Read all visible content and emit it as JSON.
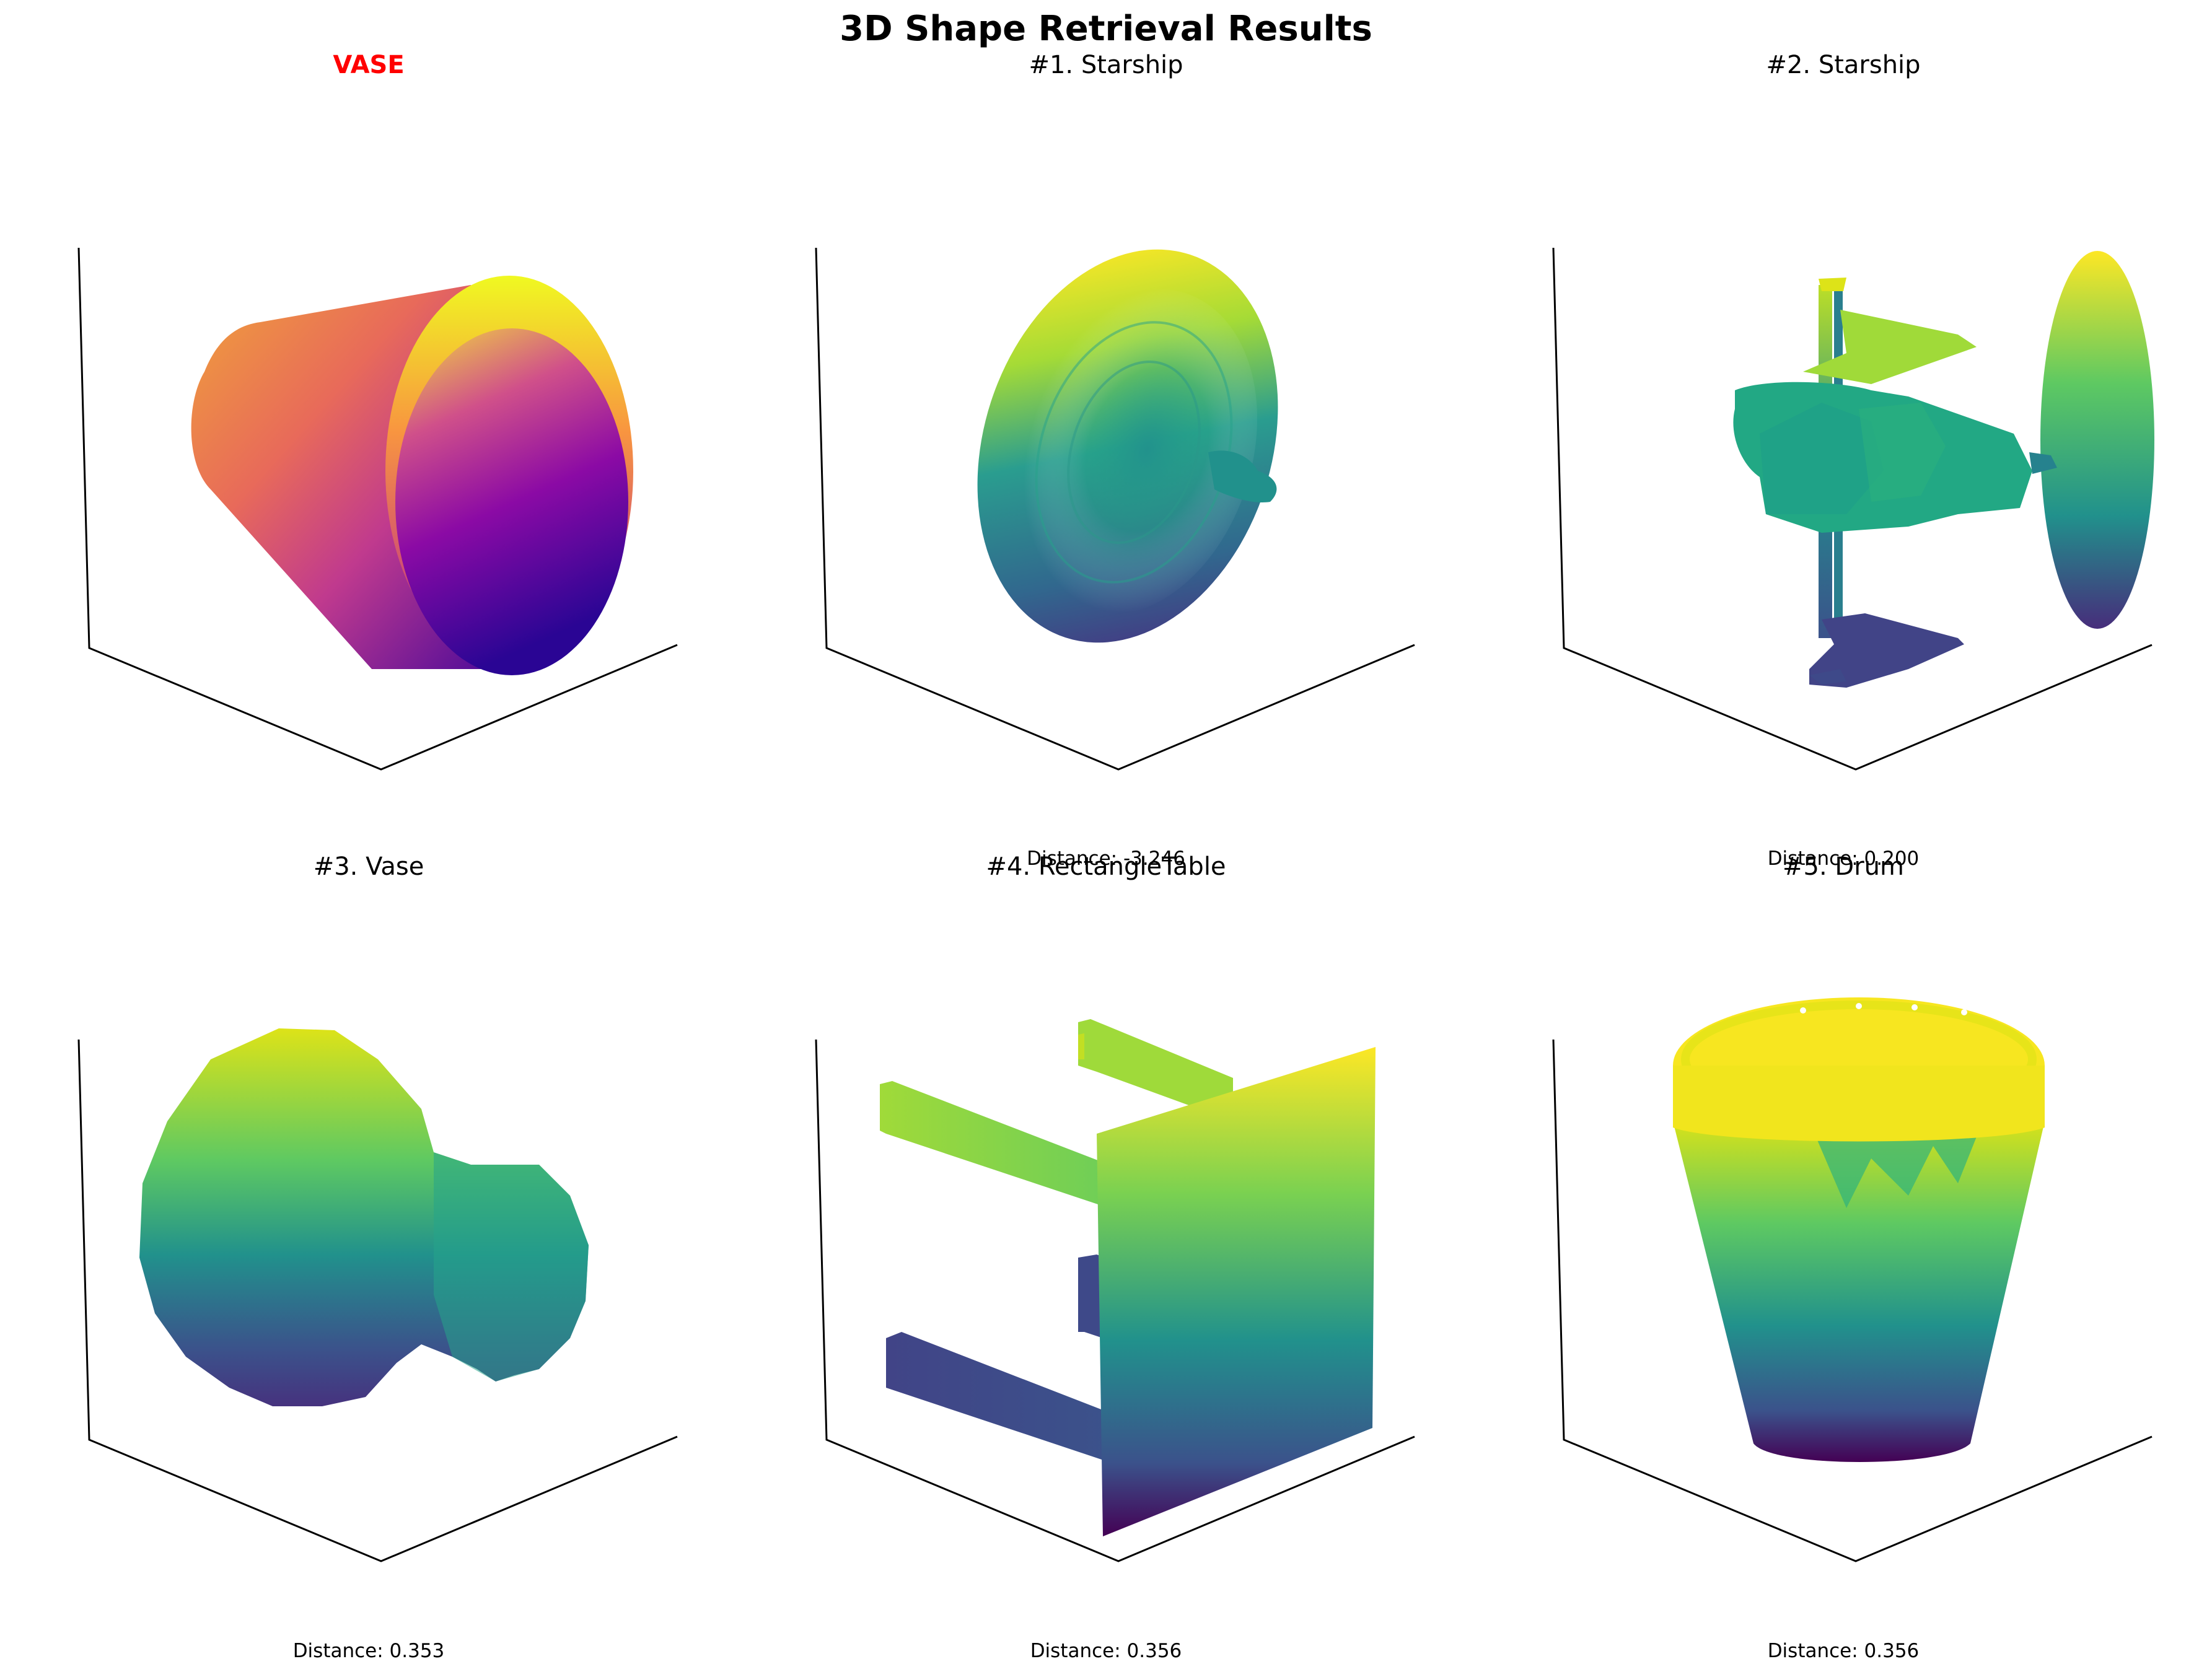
{
  "figure_title": "3D Shape Retrieval Results",
  "panels": [
    {
      "title": "VASE",
      "caption": "",
      "is_query": true,
      "colormap": "plasma"
    },
    {
      "title": "#1. Starship",
      "caption": "Distance: -3.246",
      "is_query": false,
      "colormap": "viridis"
    },
    {
      "title": "#2. Starship",
      "caption": "Distance: 0.200",
      "is_query": false,
      "colormap": "viridis"
    },
    {
      "title": "#3. Vase",
      "caption": "Distance: 0.353",
      "is_query": false,
      "colormap": "viridis"
    },
    {
      "title": "#4. RectangleTable",
      "caption": "Distance: 0.356",
      "is_query": false,
      "colormap": "viridis"
    },
    {
      "title": "#5. Drum",
      "caption": "Distance: 0.356",
      "is_query": false,
      "colormap": "viridis"
    }
  ]
}
